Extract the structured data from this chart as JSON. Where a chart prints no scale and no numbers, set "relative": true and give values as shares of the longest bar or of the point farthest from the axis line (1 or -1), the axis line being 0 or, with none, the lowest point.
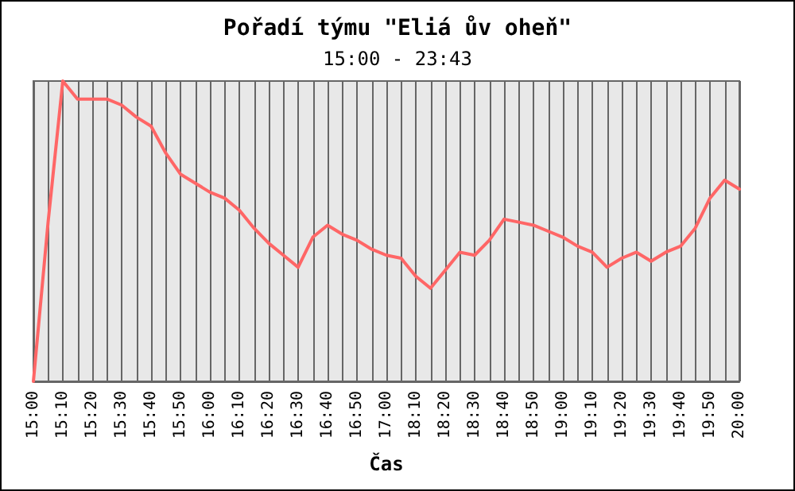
{
  "chart_data": {
    "type": "line",
    "title": "Pořadí týmu \"Eliá ův oheň\"",
    "subtitle": "15:00 - 23:43",
    "xlabel": "Čas",
    "categories": [
      "15:00",
      null,
      "15:10",
      null,
      "15:20",
      null,
      "15:30",
      null,
      "15:40",
      null,
      "15:50",
      null,
      "16:00",
      null,
      "16:10",
      null,
      "16:20",
      null,
      "16:30",
      null,
      "16:40",
      null,
      "16:50",
      null,
      "17:00",
      null,
      "18:10",
      null,
      "18:20",
      null,
      "18:30",
      null,
      "18:40",
      null,
      "18:50",
      null,
      "19:00",
      null,
      "19:10",
      null,
      "19:20",
      null,
      "19:30",
      null,
      "19:40",
      null,
      "19:50",
      null,
      "20:00"
    ],
    "series": [
      {
        "color": "#ff6666",
        "values": [
          0,
          0.53,
          1,
          0.94,
          0.94,
          0.94,
          0.92,
          0.88,
          0.85,
          0.76,
          0.69,
          0.66,
          0.63,
          0.61,
          0.57,
          0.51,
          0.46,
          0.42,
          0.38,
          0.48,
          0.52,
          0.49,
          0.47,
          0.44,
          0.42,
          0.41,
          0.35,
          0.31,
          0.37,
          0.43,
          0.42,
          0.47,
          0.54,
          0.53,
          0.52,
          0.5,
          0.48,
          0.45,
          0.43,
          0.38,
          0.41,
          0.43,
          0.4,
          0.43,
          0.45,
          0.51,
          0.61,
          0.67,
          0.64
        ]
      }
    ],
    "relative": true,
    "grid": "x",
    "tick_labels": "x",
    "marker": "none",
    "line_style": "solid"
  }
}
